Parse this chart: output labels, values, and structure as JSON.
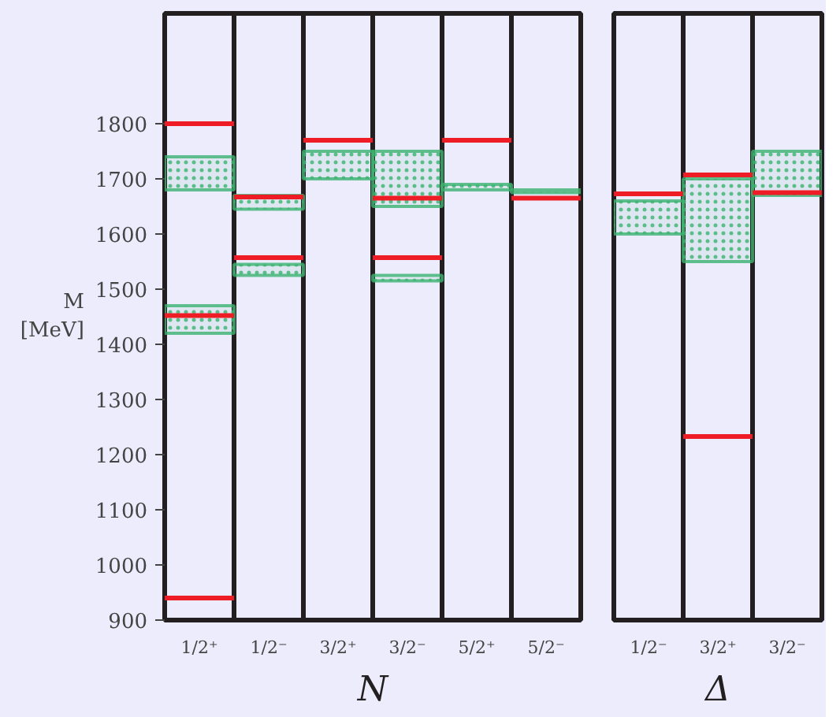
{
  "chart_data": [
    {
      "type": "bar",
      "xlabel": "N",
      "ylabel": "M [MeV]",
      "categories": [
        "1/2⁺",
        "1/2⁻",
        "3/2⁺",
        "3/2⁻",
        "5/2⁺",
        "5/2⁻"
      ],
      "ylim": [
        900,
        2000
      ],
      "yticks": [
        900,
        1000,
        1100,
        1200,
        1300,
        1400,
        1500,
        1600,
        1700,
        1800
      ],
      "grid": "x",
      "series": [
        {
          "type": "bar",
          "color": "#3cb371",
          "base": [
            1420,
            1525,
            1700,
            1515,
            1680,
            1675
          ],
          "values": [
            50,
            20,
            50,
            10,
            10,
            5
          ]
        },
        {
          "type": "bar",
          "color": "#3cb371",
          "base": [
            1680,
            1645,
            null,
            1650,
            null,
            null
          ],
          "values": [
            60,
            25,
            null,
            100,
            null,
            null
          ]
        },
        {
          "type": "bar",
          "color": "#ee1c25",
          "base": [
            1800,
            1667,
            1770,
            1665,
            1770,
            1665
          ],
          "values": [
            0,
            0,
            0,
            0,
            0,
            0
          ]
        },
        {
          "type": "bar",
          "color": "#ee1c25",
          "base": [
            1452,
            1557,
            null,
            1557,
            null,
            null
          ],
          "values": [
            0,
            0,
            null,
            0,
            null,
            null
          ]
        },
        {
          "type": "bar",
          "color": "#ee1c25",
          "base": [
            940,
            null,
            null,
            null,
            null,
            null
          ],
          "values": [
            0,
            null,
            null,
            null,
            null,
            null
          ]
        }
      ]
    },
    {
      "type": "bar",
      "xlabel": "Δ",
      "categories": [
        "1/2⁻",
        "3/2⁺",
        "3/2⁻"
      ],
      "ylim": [
        900,
        2000
      ],
      "tick_labels": "x",
      "grid": "x",
      "series": [
        {
          "type": "bar",
          "color": "#3cb371",
          "base": [
            1600,
            1550,
            1670
          ],
          "values": [
            60,
            150,
            80
          ]
        },
        {
          "type": "bar",
          "color": "#ee1c25",
          "base": [
            1673,
            1707,
            1675
          ],
          "values": [
            0,
            0,
            0
          ]
        },
        {
          "type": "bar",
          "color": "#ee1c25",
          "base": [
            null,
            1233,
            null
          ],
          "values": [
            null,
            0,
            null
          ]
        }
      ]
    }
  ]
}
